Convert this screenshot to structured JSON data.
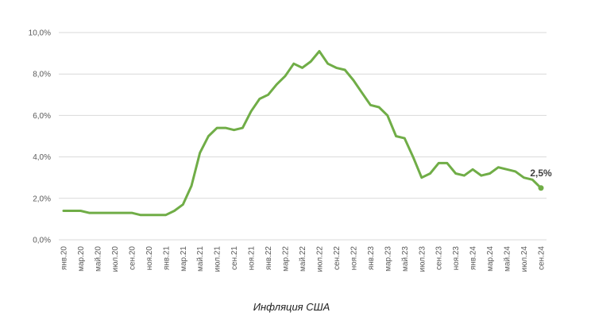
{
  "chart_data": {
    "type": "line",
    "title": "Инфляция США",
    "categories": [
      "янв.20",
      null,
      "мар.20",
      null,
      "май.20",
      null,
      "июл.20",
      null,
      "сен.20",
      null,
      "ноя.20",
      null,
      "янв.21",
      null,
      "мар.21",
      null,
      "май.21",
      null,
      "июл.21",
      null,
      "сен.21",
      null,
      "ноя.21",
      null,
      "янв.22",
      null,
      "мар.22",
      null,
      "май.22",
      null,
      "июл.22",
      null,
      "сен.22",
      null,
      "ноя.22",
      null,
      "янв.23",
      null,
      "мар.23",
      null,
      "май.23",
      null,
      "июл.23",
      null,
      "сен.23",
      null,
      "ноя.23",
      null,
      "янв.24",
      null,
      "мар.24",
      null,
      "май.24",
      null,
      "июл.24",
      null,
      "сен.24"
    ],
    "values": [
      1.4,
      1.4,
      1.4,
      1.3,
      1.3,
      1.3,
      1.3,
      1.3,
      1.3,
      1.2,
      1.2,
      1.2,
      1.2,
      1.4,
      1.7,
      2.6,
      4.2,
      5.0,
      5.4,
      5.4,
      5.3,
      5.4,
      6.2,
      6.8,
      7.0,
      7.5,
      7.9,
      8.5,
      8.3,
      8.6,
      9.1,
      8.5,
      8.3,
      8.2,
      7.7,
      7.1,
      6.5,
      6.4,
      6.0,
      5.0,
      4.9,
      4.0,
      3.0,
      3.2,
      3.7,
      3.7,
      3.2,
      3.1,
      3.4,
      3.1,
      3.2,
      3.5,
      3.4,
      3.3,
      3.0,
      2.9,
      2.5
    ],
    "value_labels": [
      null,
      null,
      null,
      null,
      null,
      null,
      null,
      null,
      null,
      null,
      null,
      null,
      null,
      null,
      null,
      null,
      null,
      null,
      null,
      null,
      null,
      null,
      null,
      null,
      null,
      null,
      null,
      null,
      null,
      null,
      null,
      null,
      null,
      null,
      null,
      null,
      null,
      null,
      null,
      null,
      null,
      null,
      null,
      null,
      null,
      null,
      null,
      null,
      null,
      null,
      null,
      null,
      null,
      null,
      null,
      null,
      "2,5%"
    ],
    "color": "#70ad47",
    "ylim": [
      0,
      10
    ],
    "yticks": [
      {
        "value": 0,
        "label": "0,0%"
      },
      {
        "value": 2,
        "label": "2,0%"
      },
      {
        "value": 4,
        "label": "4,0%"
      },
      {
        "value": 6,
        "label": "6,0%"
      },
      {
        "value": 8,
        "label": "8,0%"
      },
      {
        "value": 10,
        "label": "10,0%"
      }
    ],
    "grid": true
  }
}
